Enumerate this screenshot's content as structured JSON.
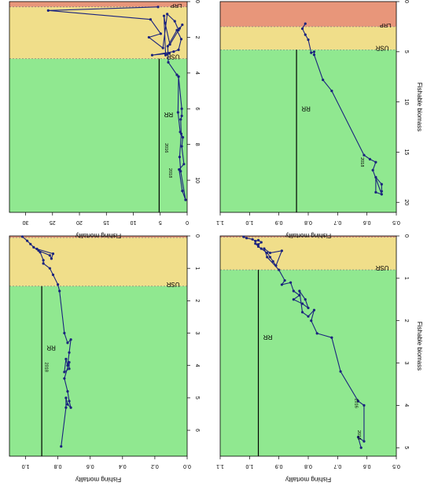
{
  "page": {
    "orientation_note_visible": false
  },
  "colors": {
    "lrp_zone": "#E8967A",
    "cautious_zone": "#F0DE8A",
    "healthy_zone": "#90E890",
    "series": "#1A237E",
    "line": "#000000"
  },
  "chart_data": [
    {
      "id": "top-left",
      "type": "line",
      "xlabel": "",
      "ylabel": "Fishing mortality",
      "xlim": [
        0,
        6.8
      ],
      "ylim": [
        0,
        1.1
      ],
      "xticks": [
        "0",
        "1",
        "2",
        "3",
        "4",
        "5",
        "6"
      ],
      "yticks": [
        "0.0",
        "0.2",
        "0.4",
        "0.6",
        "0.8",
        "1.0"
      ],
      "zones": {
        "lrp": 0.05,
        "usr": 1.55
      },
      "zone_labels": {
        "lrp": "",
        "usr": "USR",
        "rr": "RR"
      },
      "rr": 0.9,
      "year_labels": [
        {
          "text": "2018",
          "x": 4.05,
          "y": 0.86
        }
      ],
      "points": [
        [
          0.02,
          1.02
        ],
        [
          0.15,
          0.99
        ],
        [
          0.25,
          0.97
        ],
        [
          0.35,
          0.95
        ],
        [
          0.45,
          0.92
        ],
        [
          0.6,
          0.85
        ],
        [
          0.7,
          0.84
        ],
        [
          0.55,
          0.83
        ],
        [
          0.4,
          0.93
        ],
        [
          0.5,
          0.91
        ],
        [
          0.75,
          0.89
        ],
        [
          0.85,
          0.89
        ],
        [
          1.0,
          0.85
        ],
        [
          1.2,
          0.83
        ],
        [
          1.5,
          0.8
        ],
        [
          1.7,
          0.79
        ],
        [
          3.0,
          0.76
        ],
        [
          3.3,
          0.74
        ],
        [
          3.2,
          0.72
        ],
        [
          3.6,
          0.73
        ],
        [
          4.0,
          0.74
        ],
        [
          3.8,
          0.75
        ],
        [
          4.2,
          0.76
        ],
        [
          4.1,
          0.73
        ],
        [
          3.9,
          0.73
        ],
        [
          4.4,
          0.76
        ],
        [
          4.8,
          0.74
        ],
        [
          5.1,
          0.73
        ],
        [
          5.3,
          0.72
        ],
        [
          5.2,
          0.74
        ],
        [
          5.0,
          0.75
        ],
        [
          5.3,
          0.75
        ],
        [
          6.5,
          0.78
        ]
      ]
    },
    {
      "id": "top-right",
      "type": "line",
      "xlabel": "",
      "ylabel": "Fishing mortality",
      "xlim": [
        0,
        11.8
      ],
      "ylim": [
        0,
        33
      ],
      "xticks": [
        "0",
        "2",
        "4",
        "6",
        "8",
        "10"
      ],
      "yticks": [
        "0",
        "5",
        "10",
        "15",
        "20",
        "25",
        "30"
      ],
      "zones": {
        "lrp": 0.3,
        "usr": 3.2
      },
      "zone_labels": {
        "lrp": "LRP",
        "usr": "USR",
        "rr": "RR"
      },
      "rr": 5.2,
      "year_labels": [
        {
          "text": "2016",
          "x": 8.2,
          "y": 3.5
        },
        {
          "text": "2018",
          "x": 9.6,
          "y": 2.8
        }
      ],
      "points": [
        [
          0.3,
          5.4
        ],
        [
          0.5,
          25.8
        ],
        [
          1.0,
          6.8
        ],
        [
          1.8,
          4.9
        ],
        [
          2.0,
          7.1
        ],
        [
          2.6,
          4.5
        ],
        [
          0.7,
          3.7
        ],
        [
          1.1,
          2.3
        ],
        [
          1.6,
          1.6
        ],
        [
          1.3,
          0.9
        ],
        [
          1.5,
          1.4
        ],
        [
          2.4,
          3.2
        ],
        [
          1.2,
          4.1
        ],
        [
          0.8,
          4.3
        ],
        [
          3.0,
          4.0
        ],
        [
          2.9,
          3.3
        ],
        [
          3.0,
          6.5
        ],
        [
          2.8,
          2.5
        ],
        [
          2.7,
          1.6
        ],
        [
          2.1,
          1.1
        ],
        [
          1.6,
          1.9
        ],
        [
          2.5,
          3.6
        ],
        [
          3.4,
          3.5
        ],
        [
          4.1,
          1.9
        ],
        [
          4.2,
          1.6
        ],
        [
          6.2,
          1.7
        ],
        [
          7.3,
          1.3
        ],
        [
          7.6,
          0.8
        ],
        [
          8.1,
          1.0
        ],
        [
          9.1,
          0.6
        ],
        [
          9.4,
          1.5
        ],
        [
          10.6,
          0.9
        ],
        [
          11.1,
          0.3
        ],
        [
          9.5,
          1.2
        ],
        [
          8.7,
          1.4
        ],
        [
          7.4,
          1.1
        ],
        [
          6.6,
          1.2
        ],
        [
          6.4,
          1.0
        ],
        [
          6.0,
          1.0
        ],
        [
          4.2,
          1.6
        ]
      ]
    },
    {
      "id": "bottom-left",
      "type": "line",
      "xlabel": "Fishable biomass",
      "ylabel": "Fishing mortality",
      "xlim": [
        0,
        5.2
      ],
      "ylim": [
        0.5,
        1.1
      ],
      "xticks": [
        "0",
        "1",
        "2",
        "3",
        "4",
        "5"
      ],
      "yticks": [
        "0.5",
        "0.6",
        "0.7",
        "0.8",
        "0.9",
        "1.0",
        "1.1"
      ],
      "zones": {
        "lrp": 0.03,
        "usr": 0.8
      },
      "zone_labels": {
        "lrp": "",
        "usr": "USR",
        "rr": "RR"
      },
      "rr": 0.97,
      "year_labels": [
        {
          "text": "2016",
          "x": 3.95,
          "y": 0.63
        },
        {
          "text": "2018",
          "x": 4.7,
          "y": 0.62
        }
      ],
      "points": [
        [
          0.02,
          1.02
        ],
        [
          0.05,
          1.01
        ],
        [
          0.08,
          0.99
        ],
        [
          0.12,
          0.98
        ],
        [
          0.1,
          0.97
        ],
        [
          0.15,
          0.96
        ],
        [
          0.2,
          0.97
        ],
        [
          0.18,
          0.98
        ],
        [
          0.25,
          0.97
        ],
        [
          0.3,
          0.96
        ],
        [
          0.4,
          0.94
        ],
        [
          0.5,
          0.93
        ],
        [
          0.6,
          0.92
        ],
        [
          0.7,
          0.91
        ],
        [
          0.35,
          0.89
        ],
        [
          0.4,
          0.93
        ],
        [
          0.3,
          0.95
        ],
        [
          0.5,
          0.94
        ],
        [
          0.8,
          0.9
        ],
        [
          1.05,
          0.88
        ],
        [
          1.15,
          0.89
        ],
        [
          1.1,
          0.86
        ],
        [
          1.3,
          0.85
        ],
        [
          1.4,
          0.83
        ],
        [
          1.5,
          0.85
        ],
        [
          1.6,
          0.82
        ],
        [
          1.7,
          0.8
        ],
        [
          1.5,
          0.81
        ],
        [
          1.3,
          0.83
        ],
        [
          1.8,
          0.82
        ],
        [
          1.9,
          0.8
        ],
        [
          1.75,
          0.78
        ],
        [
          2.0,
          0.79
        ],
        [
          2.3,
          0.77
        ],
        [
          2.4,
          0.72
        ],
        [
          3.2,
          0.69
        ],
        [
          3.9,
          0.63
        ],
        [
          4.0,
          0.61
        ],
        [
          4.85,
          0.61
        ],
        [
          4.75,
          0.63
        ],
        [
          5.0,
          0.62
        ]
      ]
    },
    {
      "id": "bottom-right",
      "type": "line",
      "xlabel": "Fishable biomass",
      "ylabel": "Fishing mortality",
      "xlim": [
        0,
        21
      ],
      "ylim": [
        0.5,
        1.1
      ],
      "xticks": [
        "0",
        "5",
        "10",
        "15",
        "20"
      ],
      "yticks": [
        "0.5",
        "0.6",
        "0.7",
        "0.8",
        "0.9",
        "1.0",
        "1.1"
      ],
      "zones": {
        "lrp": 2.5,
        "usr": 4.8
      },
      "zone_labels": {
        "lrp": "LRP",
        "usr": "USR",
        "rr": "RR"
      },
      "rr": 0.84,
      "year_labels": [
        {
          "text": "2018",
          "x": 16.0,
          "y": 0.61
        }
      ],
      "points": [
        [
          2.2,
          0.81
        ],
        [
          2.7,
          0.82
        ],
        [
          3.3,
          0.81
        ],
        [
          3.8,
          0.8
        ],
        [
          5.1,
          0.79
        ],
        [
          5.0,
          0.78
        ],
        [
          5.3,
          0.78
        ],
        [
          7.8,
          0.75
        ],
        [
          8.9,
          0.72
        ],
        [
          15.3,
          0.61
        ],
        [
          15.7,
          0.59
        ],
        [
          16.0,
          0.57
        ],
        [
          16.8,
          0.58
        ],
        [
          19.2,
          0.55
        ],
        [
          19.0,
          0.57
        ],
        [
          17.5,
          0.57
        ],
        [
          18.2,
          0.55
        ],
        [
          18.9,
          0.55
        ]
      ]
    }
  ]
}
